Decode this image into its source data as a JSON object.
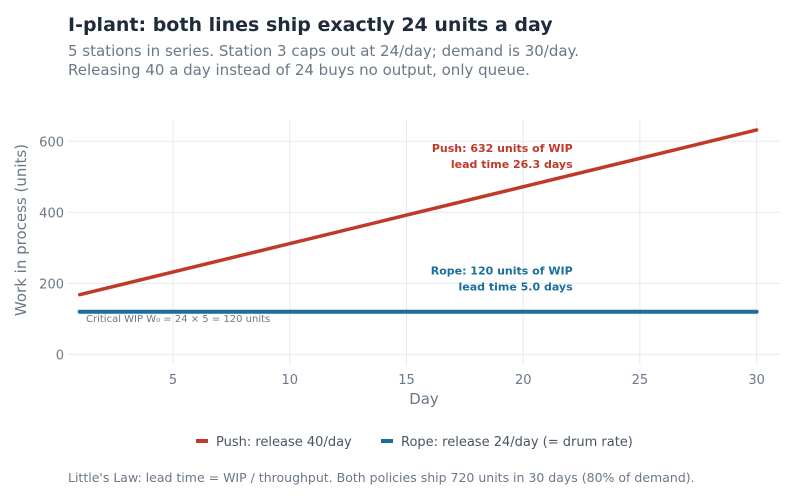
{
  "header": {
    "title": "I-plant: both lines ship exactly 24 units a day",
    "subtitle_line1": "5 stations in series. Station 3 caps out at 24/day; demand is 30/day.",
    "subtitle_line2": "Releasing 40 a day instead of 24 buys no output, only queue."
  },
  "footnote": "Little's Law: lead time = WIP / throughput. Both policies ship 720 units in 30 days (80% of demand).",
  "chart_data": {
    "type": "line",
    "xlabel": "Day",
    "ylabel": "Work in process (units)",
    "xlim": [
      0.5,
      31
    ],
    "ylim": [
      -30,
      660
    ],
    "xticks": [
      5,
      10,
      15,
      20,
      25,
      30
    ],
    "yticks": [
      0,
      200,
      400,
      600
    ],
    "grid": true,
    "legend_position": "bottom",
    "series": [
      {
        "name": "Push: release 40/day",
        "color": "#c0392b",
        "x": [
          1,
          30
        ],
        "y": [
          168,
          632
        ]
      },
      {
        "name": "Rope: release 24/day (= drum rate)",
        "color": "#1a6e9c",
        "x": [
          1,
          30
        ],
        "y": [
          120,
          120
        ]
      }
    ],
    "annotations": [
      {
        "series": 0,
        "line1": "Push: 632 units of WIP",
        "line2": "lead time 26.3 days",
        "x": 30,
        "y": 632
      },
      {
        "series": 1,
        "line1": "Rope: 120 units of WIP",
        "line2": "lead time 5.0 days",
        "x": 30,
        "y": 120
      }
    ],
    "reference_label": "Critical WIP W₀ = 24 × 5 = 120 units"
  }
}
